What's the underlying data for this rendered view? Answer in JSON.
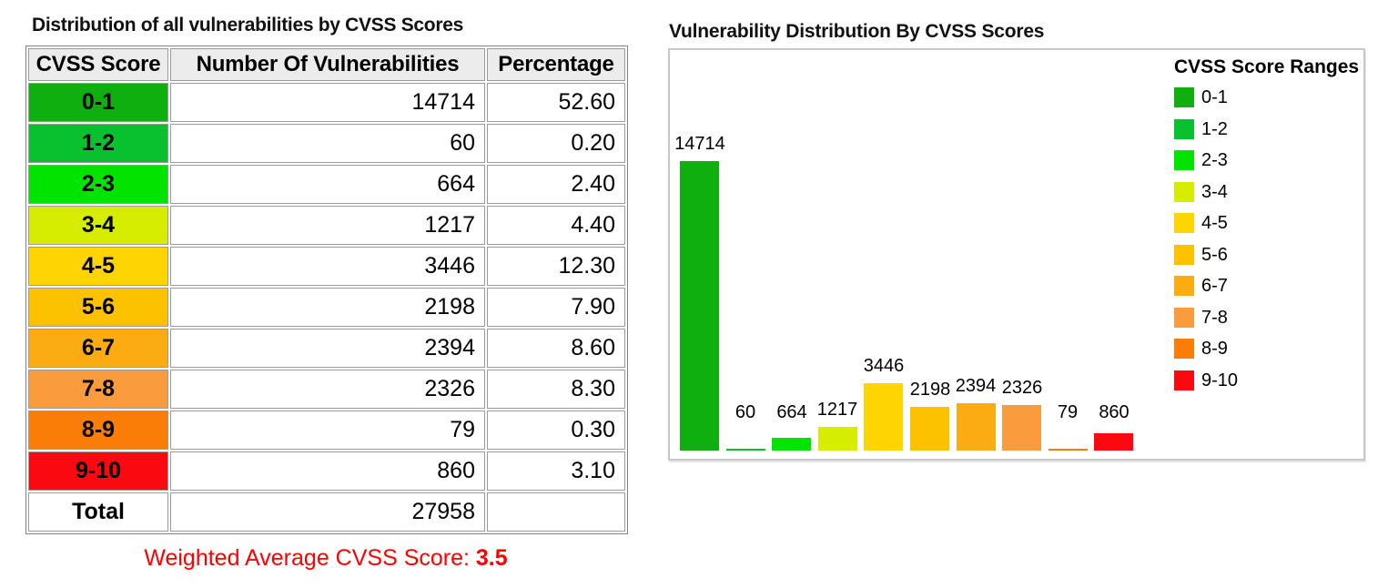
{
  "left_panel": {
    "title": "Distribution of all vulnerabilities by CVSS Scores",
    "table": {
      "headers": [
        "CVSS Score",
        "Number Of Vulnerabilities",
        "Percentage"
      ],
      "rows": [
        {
          "range": "0-1",
          "count": "14714",
          "percentage": "52.60",
          "color": "#0FAF0F"
        },
        {
          "range": "1-2",
          "count": "60",
          "percentage": "0.20",
          "color": "#09C12F"
        },
        {
          "range": "2-3",
          "count": "664",
          "percentage": "2.40",
          "color": "#00E400"
        },
        {
          "range": "3-4",
          "count": "1217",
          "percentage": "4.40",
          "color": "#D6EC00"
        },
        {
          "range": "4-5",
          "count": "3446",
          "percentage": "12.30",
          "color": "#FED500"
        },
        {
          "range": "5-6",
          "count": "2198",
          "percentage": "7.90",
          "color": "#FCC200"
        },
        {
          "range": "6-7",
          "count": "2394",
          "percentage": "8.60",
          "color": "#FBAC13"
        },
        {
          "range": "7-8",
          "count": "2326",
          "percentage": "8.30",
          "color": "#FA9B3D"
        },
        {
          "range": "8-9",
          "count": "79",
          "percentage": "0.30",
          "color": "#F97D06"
        },
        {
          "range": "9-10",
          "count": "860",
          "percentage": "3.10",
          "color": "#FA0A10"
        }
      ],
      "total_label": "Total",
      "total_count": "27958",
      "total_percentage": ""
    },
    "footer": {
      "label": "Weighted Average CVSS Score: ",
      "value": "3.5",
      "color": "#FF0000"
    }
  },
  "right_panel": {
    "title": "Vulnerability Distribution By CVSS Scores",
    "legend": {
      "title": "CVSS Score Ranges"
    }
  },
  "chart_data": {
    "type": "bar",
    "title": "Vulnerability Distribution By CVSS Scores",
    "categories": [
      "0-1",
      "1-2",
      "2-3",
      "3-4",
      "4-5",
      "5-6",
      "6-7",
      "7-8",
      "8-9",
      "9-10"
    ],
    "values": [
      14714,
      60,
      664,
      1217,
      3446,
      2198,
      2394,
      2326,
      79,
      860
    ],
    "data_labels": [
      "14714",
      "60",
      "664",
      "1217",
      "3446",
      "2198",
      "2394",
      "2326",
      "79",
      "860"
    ],
    "bar_colors": [
      "#0FAF0F",
      "#09C12F",
      "#00E400",
      "#D6EC00",
      "#FED500",
      "#FCC200",
      "#FBAC13",
      "#FA9B3D",
      "#F97D06",
      "#FA0A10"
    ],
    "legend_title": "CVSS Score Ranges",
    "legend_entries": [
      "0-1",
      "1-2",
      "2-3",
      "3-4",
      "4-5",
      "5-6",
      "6-7",
      "7-8",
      "8-9",
      "9-10"
    ],
    "legend_position": "top-right-inside",
    "xlabel": "",
    "ylabel": "",
    "ylim": [
      0,
      14714
    ],
    "axes_shown": false,
    "grid": false,
    "value_labels_above_bars": true
  }
}
